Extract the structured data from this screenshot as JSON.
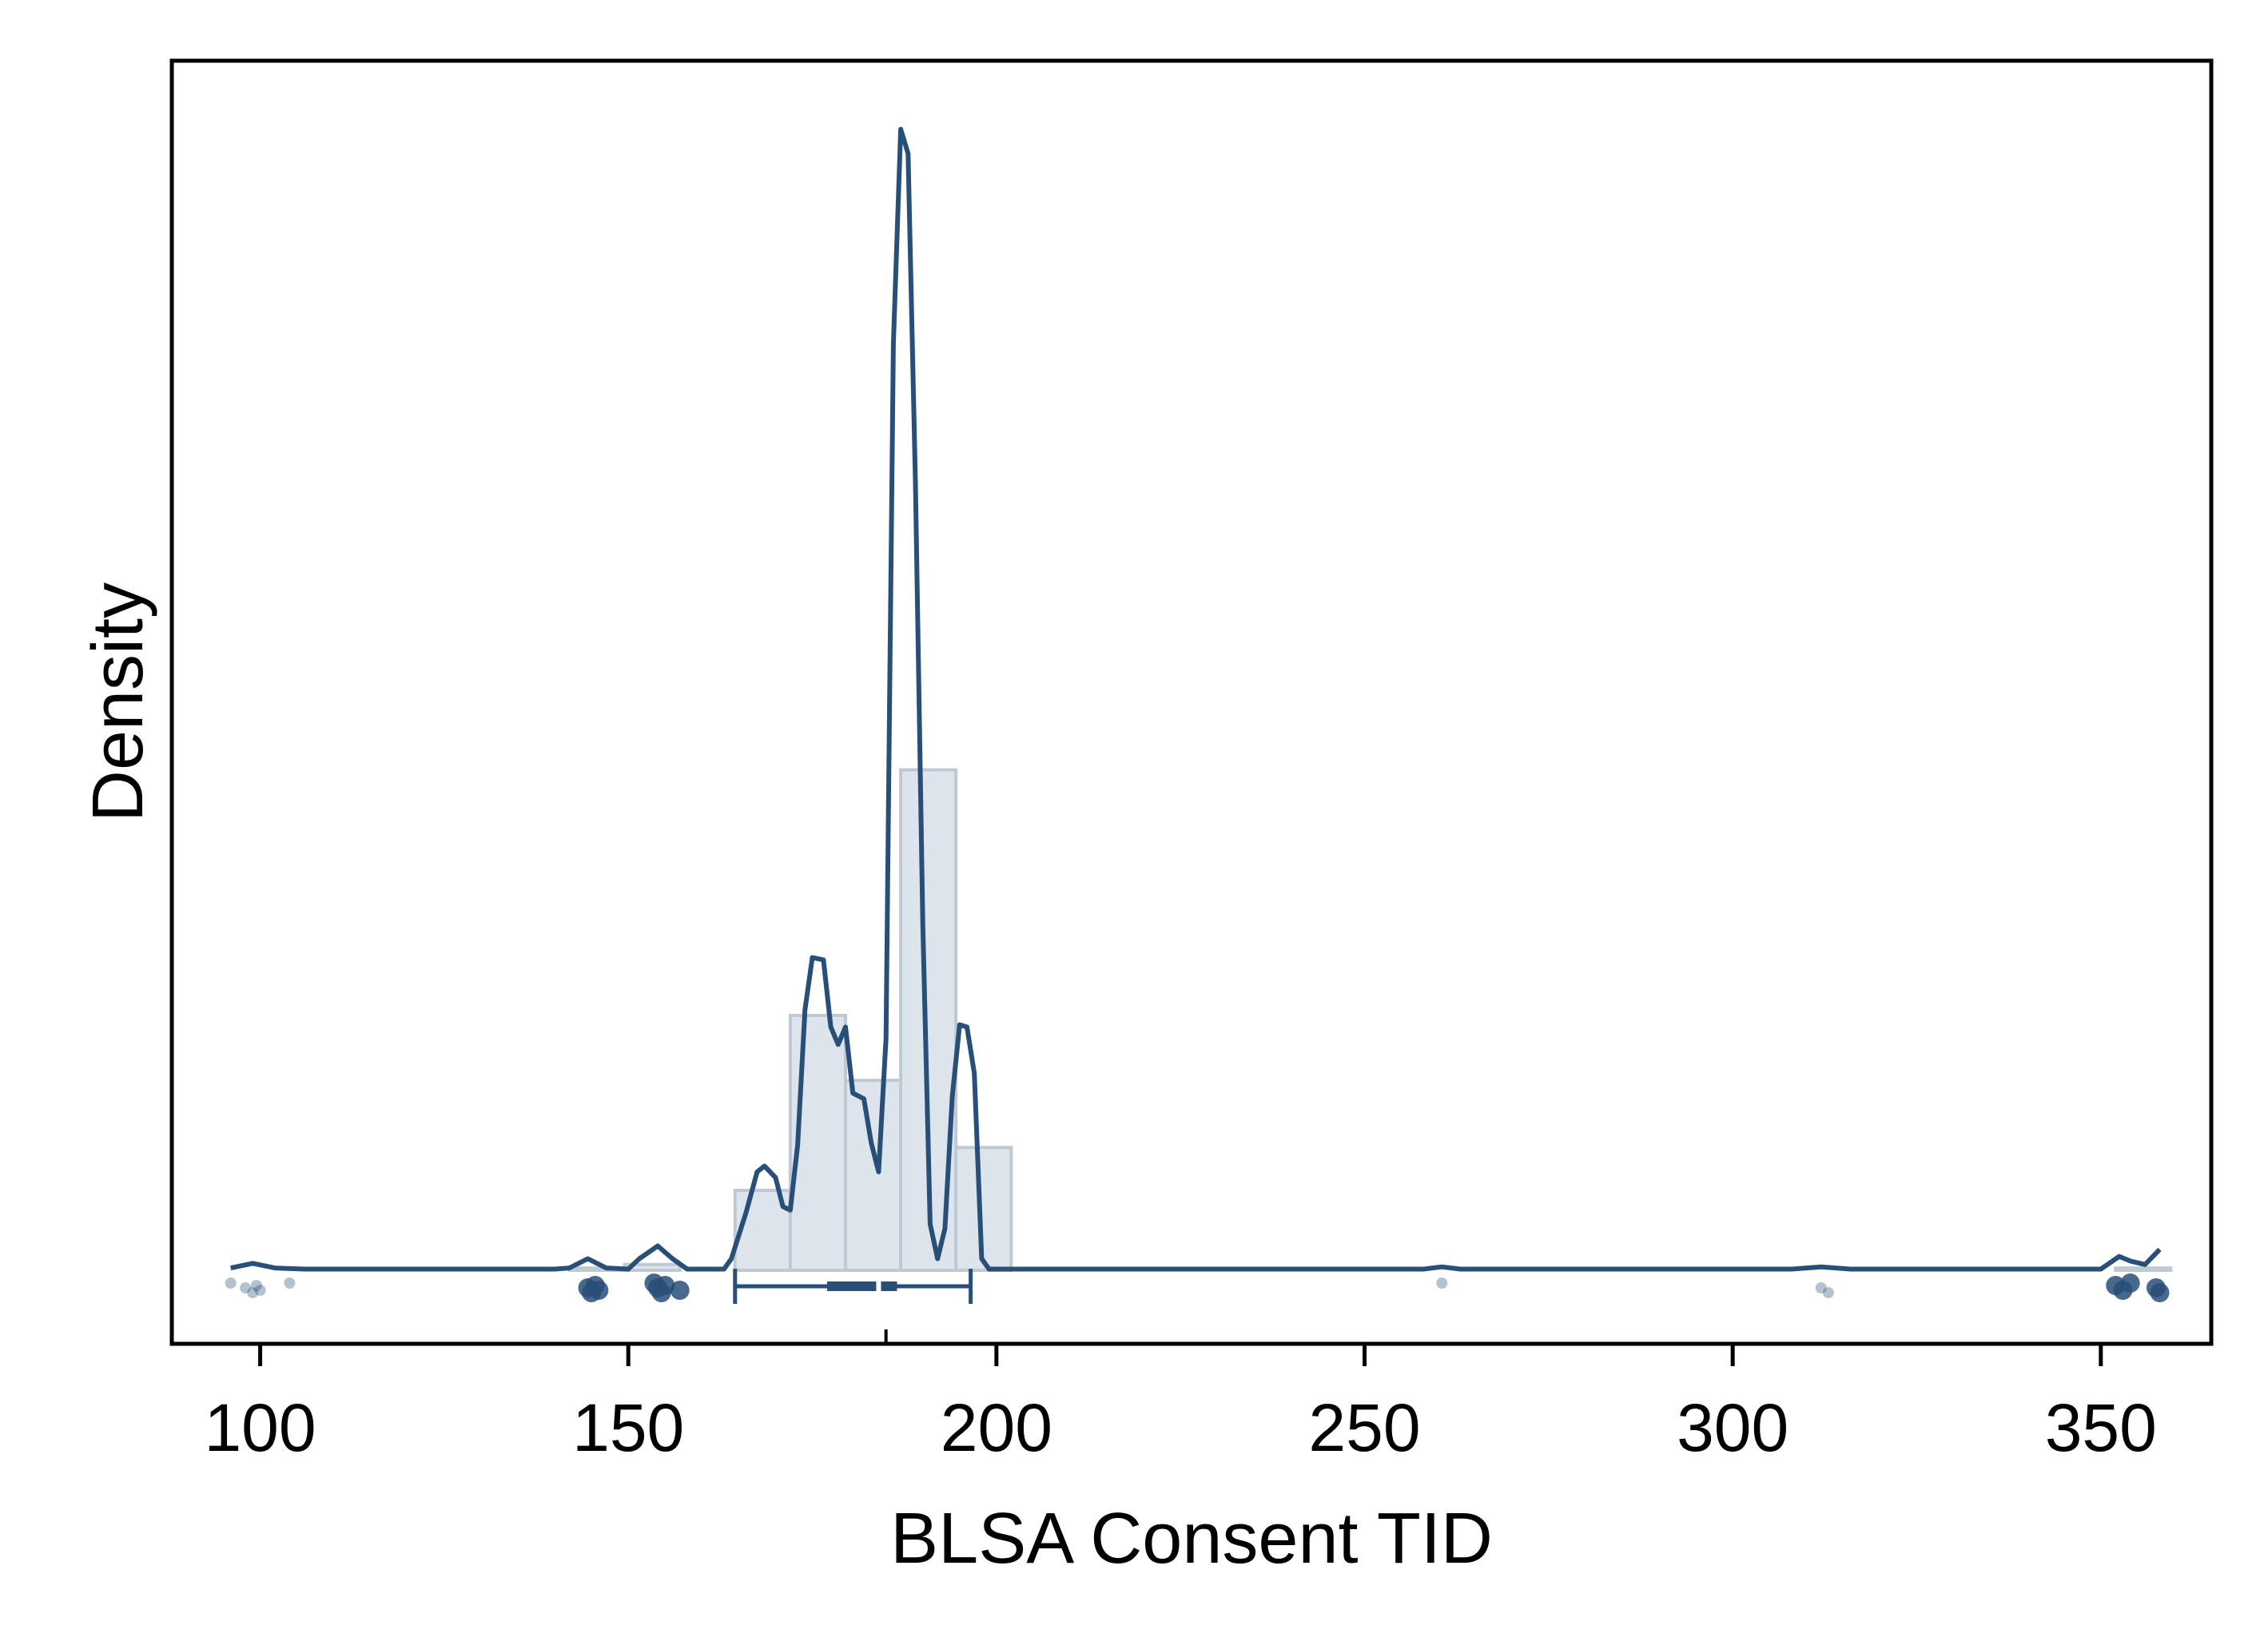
{
  "chart_data": {
    "type": "histogram",
    "xlabel": "BLSA Consent TID",
    "ylabel": "Density",
    "xlim": [
      88,
      365
    ],
    "x_ticks": [
      "100",
      "150",
      "200",
      "250",
      "300",
      "350"
    ],
    "histogram": {
      "bin_width": 7.5,
      "bins": [
        {
          "start": 142.0,
          "density": 0.002
        },
        {
          "start": 149.5,
          "density": 0.005
        },
        {
          "start": 164.5,
          "density": 0.069
        },
        {
          "start": 172.0,
          "density": 0.22
        },
        {
          "start": 179.5,
          "density": 0.164
        },
        {
          "start": 187.0,
          "density": 0.432
        },
        {
          "start": 194.5,
          "density": 0.106
        },
        {
          "start": 352.0,
          "density": 0.002
        }
      ]
    },
    "density_curve": {
      "x": [
        96,
        99,
        102,
        106,
        110,
        140,
        142,
        144.5,
        147,
        150,
        151.5,
        154,
        156,
        158,
        163,
        164,
        166,
        167.5,
        168.5,
        170,
        171,
        172,
        173,
        174,
        175,
        176.5,
        177.5,
        178.5,
        179.5,
        180.5,
        182,
        183,
        184,
        185,
        186,
        187,
        188,
        189,
        190,
        191,
        192,
        193,
        194,
        195,
        196,
        197,
        198,
        199,
        204,
        258,
        260.5,
        263,
        308,
        312,
        316,
        350,
        352.5,
        354,
        356,
        358
      ],
      "y": [
        0.002,
        0.006,
        0.002,
        0.001,
        0.001,
        0.001,
        0.002,
        0.01,
        0.002,
        0.001,
        0.01,
        0.021,
        0.01,
        0.001,
        0.001,
        0.01,
        0.05,
        0.085,
        0.09,
        0.08,
        0.055,
        0.052,
        0.108,
        0.225,
        0.27,
        0.268,
        0.21,
        0.195,
        0.21,
        0.153,
        0.148,
        0.11,
        0.085,
        0.2,
        0.8,
        0.985,
        0.964,
        0.68,
        0.3,
        0.04,
        0.01,
        0.036,
        0.15,
        0.212,
        0.21,
        0.17,
        0.01,
        0.001,
        0.001,
        0.001,
        0.003,
        0.001,
        0.001,
        0.003,
        0.001,
        0.001,
        0.012,
        0.008,
        0.005,
        0.018
      ]
    },
    "box_plot": {
      "whisker_low": 164.5,
      "q1": 177,
      "median": 184,
      "q3": 186.5,
      "whisker_high": 196.5
    },
    "mean": 185,
    "rug_points": [
      96,
      98,
      99,
      99.5,
      100,
      104,
      144.5,
      145,
      145.5,
      146,
      153.5,
      154,
      154.5,
      155,
      157,
      260.5,
      312,
      313,
      352,
      353,
      354,
      357.5,
      358
    ],
    "colors": {
      "line": "#284f77",
      "bar_fill": "#dde4eb",
      "bar_stroke": "#bfc9d4",
      "rug": "#284f77",
      "axis": "#000000"
    }
  }
}
